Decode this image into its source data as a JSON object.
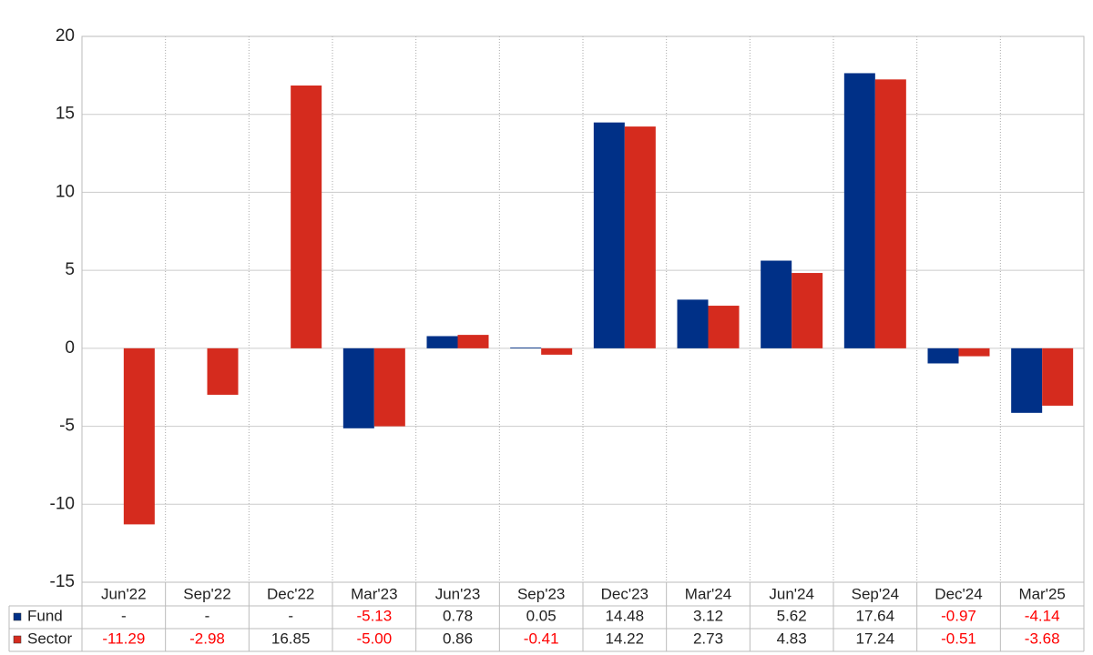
{
  "chart_data": {
    "type": "bar",
    "categories": [
      "Jun'22",
      "Sep'22",
      "Dec'22",
      "Mar'23",
      "Jun'23",
      "Sep'23",
      "Dec'23",
      "Mar'24",
      "Jun'24",
      "Sep'24",
      "Dec'24",
      "Mar'25"
    ],
    "series": [
      {
        "name": "Fund",
        "color": "#003087",
        "values": [
          null,
          null,
          null,
          -5.13,
          0.78,
          0.05,
          14.48,
          3.12,
          5.62,
          17.64,
          -0.97,
          -4.14
        ],
        "value_labels": [
          "-",
          "-",
          "-",
          "-5.13",
          "0.78",
          "0.05",
          "14.48",
          "3.12",
          "5.62",
          "17.64",
          "-0.97",
          "-4.14"
        ]
      },
      {
        "name": "Sector",
        "color": "#d52b1e",
        "values": [
          -11.29,
          -2.98,
          16.85,
          -5.0,
          0.86,
          -0.41,
          14.22,
          2.73,
          4.83,
          17.24,
          -0.51,
          -3.68
        ],
        "value_labels": [
          "-11.29",
          "-2.98",
          "16.85",
          "-5.00",
          "0.86",
          "-0.41",
          "14.22",
          "2.73",
          "4.83",
          "17.24",
          "-0.51",
          "-3.68"
        ]
      }
    ],
    "ylim": [
      -15,
      20
    ],
    "yticks": [
      -15,
      -10,
      -5,
      0,
      5,
      10,
      15,
      20
    ],
    "grid": true
  }
}
